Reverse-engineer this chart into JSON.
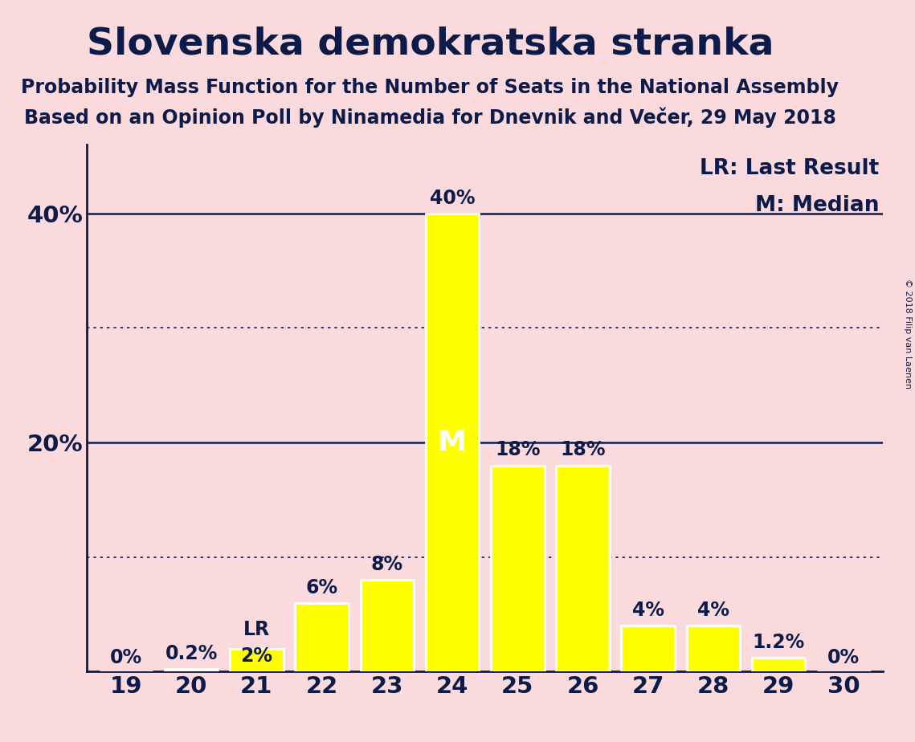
{
  "title": "Slovenska demokratska stranka",
  "subtitle1": "Probability Mass Function for the Number of Seats in the National Assembly",
  "subtitle2": "Based on an Opinion Poll by Ninamedia for Dnevnik and Večer, 29 May 2018",
  "copyright": "© 2018 Filip van Laenen",
  "categories": [
    19,
    20,
    21,
    22,
    23,
    24,
    25,
    26,
    27,
    28,
    29,
    30
  ],
  "values": [
    0.0,
    0.2,
    2.0,
    6.0,
    8.0,
    40.0,
    18.0,
    18.0,
    4.0,
    4.0,
    1.2,
    0.0
  ],
  "labels": [
    "0%",
    "0.2%",
    "2%",
    "6%",
    "8%",
    "40%",
    "18%",
    "18%",
    "4%",
    "4%",
    "1.2%",
    "0%"
  ],
  "bar_color": "#FFFF00",
  "background_color": "#FADADD",
  "text_color": "#0D1B4B",
  "bar_edge_color": "#FFFFFF",
  "median_seat": 24,
  "last_result_seat": 21,
  "ylim": [
    0,
    46
  ],
  "dotted_lines": [
    10,
    30
  ],
  "solid_lines": [
    20,
    40
  ],
  "legend_lr": "LR: Last Result",
  "legend_m": "M: Median",
  "title_fontsize": 34,
  "subtitle_fontsize": 17,
  "axis_fontsize": 21,
  "label_fontsize": 17,
  "legend_fontsize": 19,
  "median_fontsize": 26
}
